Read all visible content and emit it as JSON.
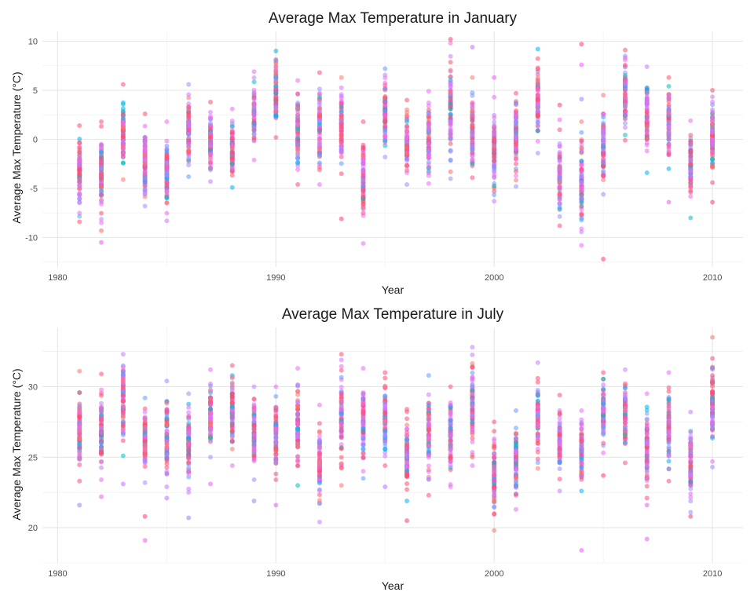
{
  "chart_data": [
    {
      "type": "scatter",
      "title": "Average Max Temperature in January",
      "xlabel": "Year",
      "ylabel": "Average Max Temperature (°C)",
      "xlim": [
        1979.3,
        2011.4
      ],
      "ylim": [
        -13.0,
        11.0
      ],
      "xticks": [
        1980,
        1990,
        2000,
        2010
      ],
      "yticks": [
        -10,
        -5,
        0,
        5,
        10
      ],
      "grid": true,
      "legend": "none",
      "colors": [
        "#f8766d",
        "#ff4f73",
        "#e76bf3",
        "#c77cff",
        "#9590ff",
        "#619cff",
        "#00b0f6",
        "#00bfc4"
      ],
      "years": [
        1981,
        1982,
        1983,
        1984,
        1985,
        1986,
        1987,
        1988,
        1989,
        1990,
        1991,
        1992,
        1993,
        1994,
        1995,
        1996,
        1997,
        1998,
        1999,
        2000,
        2001,
        2002,
        2003,
        2004,
        2005,
        2006,
        2007,
        2008,
        2009,
        2010
      ],
      "range_min": [
        -8.4,
        -8.5,
        -4.1,
        -6.8,
        -8.3,
        -3.8,
        -4.3,
        -4.9,
        -2.1,
        0.2,
        -4.6,
        -4.6,
        -3.5,
        -10.6,
        -1.8,
        -4.6,
        -4.5,
        -4.0,
        -3.9,
        -6.3,
        -4.8,
        -1.4,
        -8.8,
        -10.8,
        -5.6,
        -0.1,
        -3.4,
        -3.0,
        -8.0,
        -4.4
      ],
      "range_max": [
        1.4,
        1.8,
        5.6,
        2.6,
        1.8,
        5.6,
        3.8,
        3.1,
        6.9,
        9.0,
        6.0,
        6.8,
        6.3,
        1.8,
        7.2,
        4.0,
        4.9,
        9.8,
        6.3,
        4.3,
        4.7,
        9.2,
        2.0,
        1.8,
        4.5,
        9.1,
        7.4,
        6.3,
        1.9,
        5.0
      ],
      "outliers": [
        {
          "x": 1982,
          "y": -10.5
        },
        {
          "x": 1982,
          "y": -9.3
        },
        {
          "x": 1993,
          "y": -8.1
        },
        {
          "x": 1998,
          "y": 10.2
        },
        {
          "x": 1998,
          "y": -3.3
        },
        {
          "x": 1999,
          "y": 9.4
        },
        {
          "x": 2000,
          "y": 6.3
        },
        {
          "x": 2003,
          "y": 3.5
        },
        {
          "x": 2004,
          "y": 9.7
        },
        {
          "x": 2004,
          "y": 7.6
        },
        {
          "x": 2004,
          "y": 4.1
        },
        {
          "x": 2005,
          "y": -12.2
        },
        {
          "x": 2008,
          "y": -6.4
        },
        {
          "x": 2010,
          "y": -6.4
        }
      ]
    },
    {
      "type": "scatter",
      "title": "Average Max Temperature in July",
      "xlabel": "Year",
      "ylabel": "Average Max Temperature (°C)",
      "xlim": [
        1979.3,
        2011.4
      ],
      "ylim": [
        17.5,
        34.2
      ],
      "xticks": [
        1980,
        1990,
        2000,
        2010
      ],
      "yticks": [
        20,
        25,
        30
      ],
      "grid": true,
      "legend": "none",
      "colors": [
        "#f8766d",
        "#ff4f73",
        "#e76bf3",
        "#c77cff",
        "#9590ff",
        "#619cff",
        "#00b0f6",
        "#00bfc4"
      ],
      "years": [
        1981,
        1982,
        1983,
        1984,
        1985,
        1986,
        1987,
        1988,
        1989,
        1990,
        1991,
        1992,
        1993,
        1994,
        1995,
        1996,
        1997,
        1998,
        1999,
        2000,
        2001,
        2002,
        2003,
        2004,
        2005,
        2006,
        2007,
        2008,
        2009,
        2010
      ],
      "range_min": [
        23.3,
        23.4,
        25.1,
        23.2,
        22.9,
        22.5,
        25.0,
        24.4,
        23.4,
        23.4,
        23.0,
        20.4,
        23.0,
        23.5,
        24.4,
        21.9,
        22.3,
        22.9,
        24.4,
        19.8,
        21.3,
        24.2,
        22.6,
        22.6,
        25.3,
        24.6,
        22.1,
        23.3,
        21.1,
        24.3
      ],
      "range_max": [
        31.1,
        30.9,
        32.3,
        29.2,
        30.4,
        29.5,
        31.2,
        31.5,
        30.0,
        30.0,
        31.3,
        28.7,
        32.3,
        31.3,
        31.0,
        28.4,
        30.8,
        30.0,
        32.8,
        27.5,
        28.3,
        31.7,
        29.4,
        28.3,
        31.0,
        31.2,
        29.5,
        31.0,
        28.2,
        33.5
      ],
      "outliers": [
        {
          "x": 1981,
          "y": 21.6
        },
        {
          "x": 1982,
          "y": 22.2
        },
        {
          "x": 1983,
          "y": 23.1
        },
        {
          "x": 1984,
          "y": 20.8
        },
        {
          "x": 1984,
          "y": 19.1
        },
        {
          "x": 1985,
          "y": 22.1
        },
        {
          "x": 1986,
          "y": 20.7
        },
        {
          "x": 1987,
          "y": 23.1
        },
        {
          "x": 1989,
          "y": 21.9
        },
        {
          "x": 1990,
          "y": 21.6
        },
        {
          "x": 1995,
          "y": 22.9
        },
        {
          "x": 1996,
          "y": 20.5
        },
        {
          "x": 2004,
          "y": 18.4
        },
        {
          "x": 2005,
          "y": 23.7
        },
        {
          "x": 2007,
          "y": 19.2
        },
        {
          "x": 2007,
          "y": 21.6
        },
        {
          "x": 2009,
          "y": 20.8
        }
      ]
    }
  ]
}
